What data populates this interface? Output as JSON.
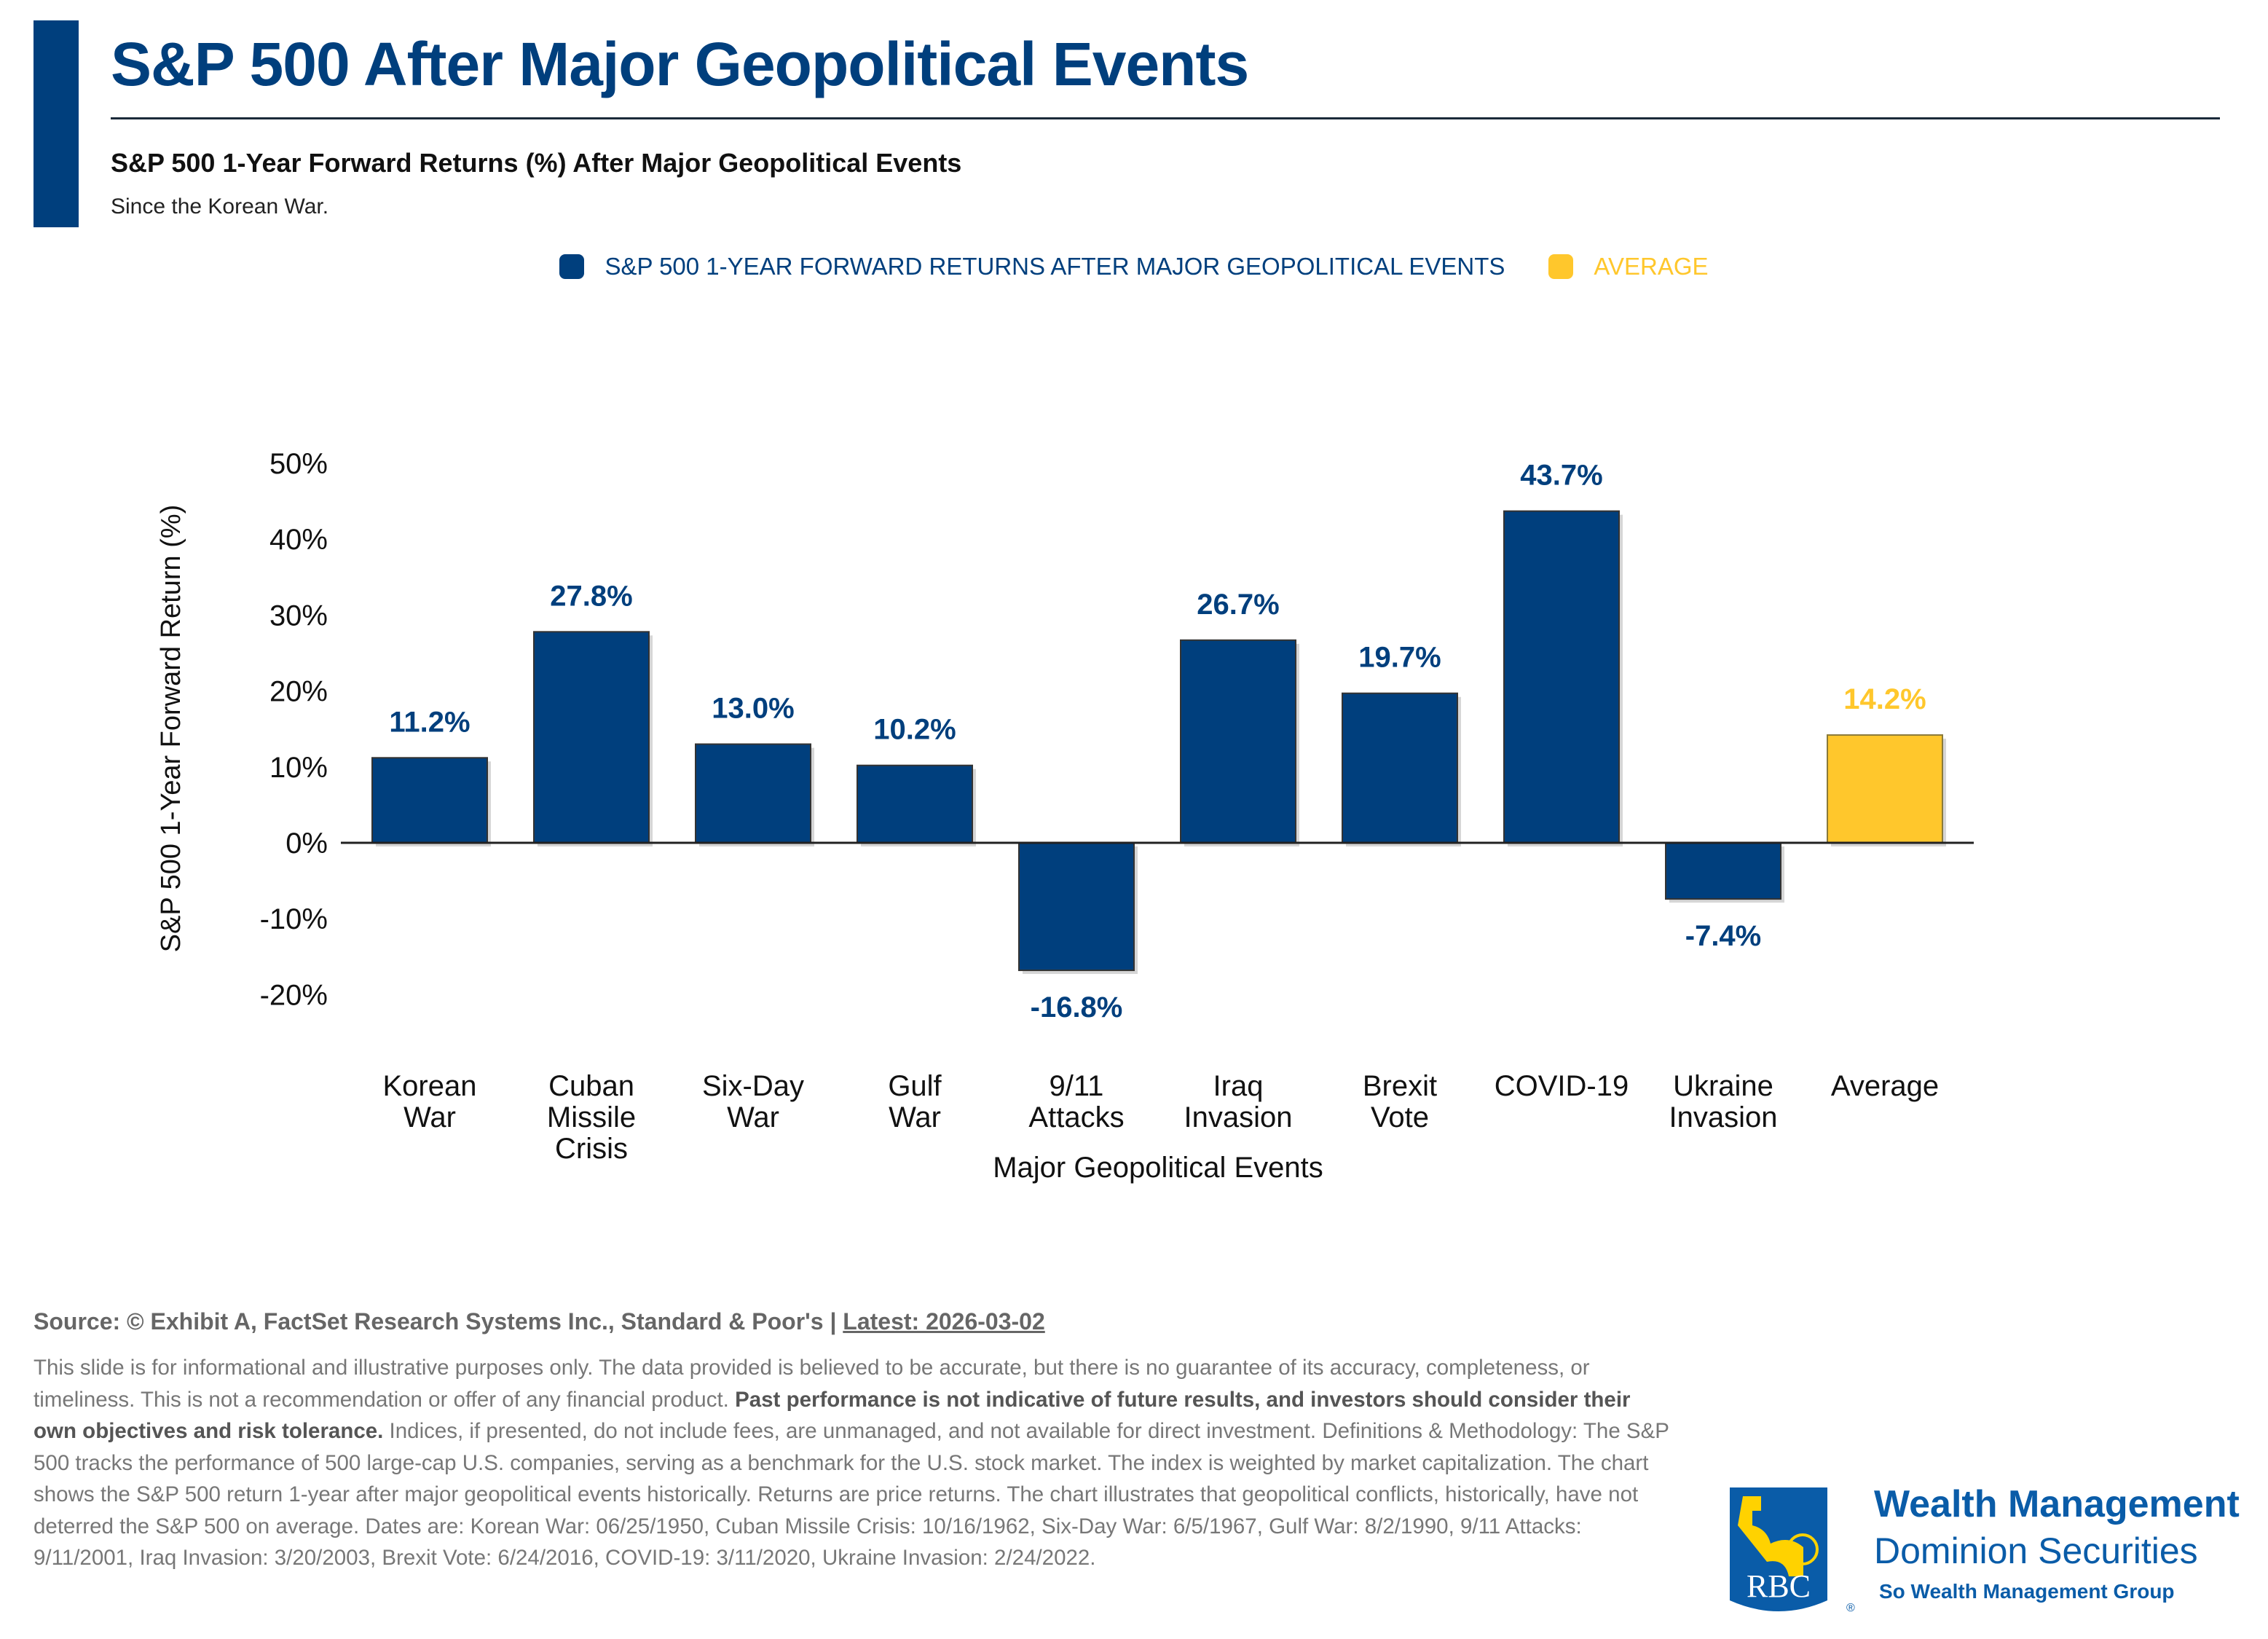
{
  "header": {
    "title": "S&P 500 After Major Geopolitical Events",
    "subtitle": "S&P 500 1-Year Forward Returns (%) After Major Geopolitical Events",
    "note": "Since the Korean War."
  },
  "colors": {
    "primary": "#003f7d",
    "average": "#ffc72c",
    "text_gray": "#777777"
  },
  "chart_data": {
    "type": "bar",
    "categories": [
      [
        "Korean",
        "War"
      ],
      [
        "Cuban",
        "Missile",
        "Crisis"
      ],
      [
        "Six-Day",
        "War"
      ],
      [
        "Gulf",
        "War"
      ],
      [
        "9/11",
        "Attacks"
      ],
      [
        "Iraq",
        "Invasion"
      ],
      [
        "Brexit",
        "Vote"
      ],
      [
        "COVID-19"
      ],
      [
        "Ukraine",
        "Invasion"
      ],
      [
        "Average"
      ]
    ],
    "values": [
      11.2,
      27.8,
      13.0,
      10.2,
      -16.8,
      26.7,
      19.7,
      43.7,
      -7.4,
      14.2
    ],
    "data_labels": [
      "11.2%",
      "27.8%",
      "13.0%",
      "10.2%",
      "-16.8%",
      "26.7%",
      "19.7%",
      "43.7%",
      "-7.4%",
      "14.2%"
    ],
    "series": [
      {
        "name": "S&P 500 1-YEAR FORWARD RETURNS AFTER MAJOR GEOPOLITICAL EVENTS",
        "color": "#003f7d"
      },
      {
        "name": "AVERAGE",
        "color": "#ffc72c"
      }
    ],
    "xlabel": "Major Geopolitical Events",
    "ylabel": "S&P 500 1-Year Forward Return (%)",
    "ylim": [
      -20,
      50
    ],
    "yticks": [
      50,
      40,
      30,
      20,
      10,
      0,
      -10,
      -20
    ],
    "ytick_labels": [
      "50%",
      "40%",
      "30%",
      "20%",
      "10%",
      "0%",
      "-10%",
      "-20%"
    ],
    "grid": false,
    "legend_position": "top-center"
  },
  "footer": {
    "source_prefix": "Source: © Exhibit A, FactSet Research Systems Inc., Standard & Poor's | ",
    "latest": "Latest: 2026-03-02",
    "disclaimer_1": "This slide is for informational and illustrative purposes only. The data provided is believed to be accurate, but there is no guarantee of its accuracy, completeness, or timeliness. This is not a recommendation or offer of any financial product. ",
    "disclaimer_bold": "Past performance is not indicative of future results, and investors should consider their own objectives and risk tolerance.",
    "disclaimer_2": " Indices, if presented, do not include fees, are unmanaged, and not available for direct investment. Definitions & Methodology: The S&P 500 tracks the performance of 500 large-cap U.S. companies, serving as a benchmark for the U.S. stock market. The index is weighted by market capitalization. The chart shows the S&P 500 return 1-year after major geopolitical events historically. Returns are price returns. The chart illustrates that geopolitical conflicts, historically, have not deterred the S&P 500 on average. Dates are: Korean War: 06/25/1950, Cuban Missile Crisis: 10/16/1962, Six-Day War: 6/5/1967, Gulf War: 8/2/1990, 9/11 Attacks: 9/11/2001, Iraq Invasion: 3/20/2003, Brexit Vote: 6/24/2016, COVID-19: 3/11/2020, Ukraine Invasion: 2/24/2022."
  },
  "branding": {
    "logo_text": "RBC",
    "line1": "Wealth Management",
    "line2": "Dominion Securities",
    "line3": "So Wealth Management Group"
  }
}
